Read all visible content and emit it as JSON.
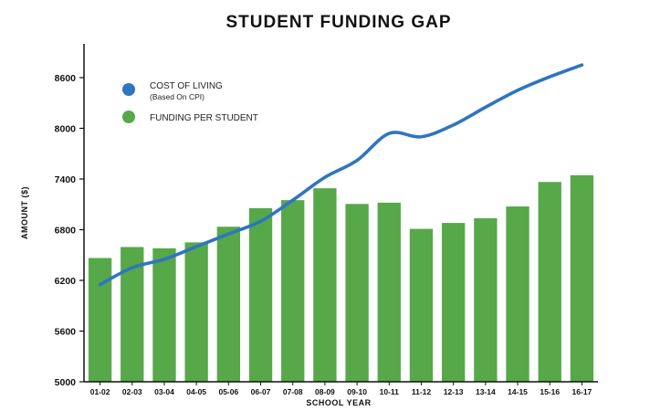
{
  "chart_data": {
    "type": "bar+line",
    "title": "STUDENT FUNDING GAP",
    "xlabel": "SCHOOL YEAR",
    "ylabel": "AMOUNT ($)",
    "ylim": [
      5000,
      9000
    ],
    "yticks": [
      5000,
      5600,
      6200,
      6800,
      7400,
      8000,
      8600
    ],
    "categories": [
      "01-02",
      "02-03",
      "03-04",
      "04-05",
      "05-06",
      "06-07",
      "07-08",
      "08-09",
      "09-10",
      "10-11",
      "11-12",
      "12-13",
      "13-14",
      "14-15",
      "15-16",
      "16-17"
    ],
    "series": [
      {
        "name": "FUNDING PER STUDENT",
        "type": "bar",
        "color": "#56a849",
        "values": [
          6465,
          6595,
          6580,
          6650,
          6835,
          7055,
          7150,
          7290,
          7105,
          7120,
          6810,
          6880,
          6935,
          7075,
          7365,
          7445
        ]
      },
      {
        "name": "COST OF LIVING",
        "subname": "(Based On CPI)",
        "type": "line",
        "color": "#2f75c0",
        "values": [
          6150,
          6350,
          6450,
          6600,
          6750,
          6900,
          7150,
          7420,
          7620,
          7940,
          7900,
          8040,
          8250,
          8450,
          8610,
          8750
        ]
      }
    ],
    "legend_position": "top-left",
    "grid": false
  }
}
